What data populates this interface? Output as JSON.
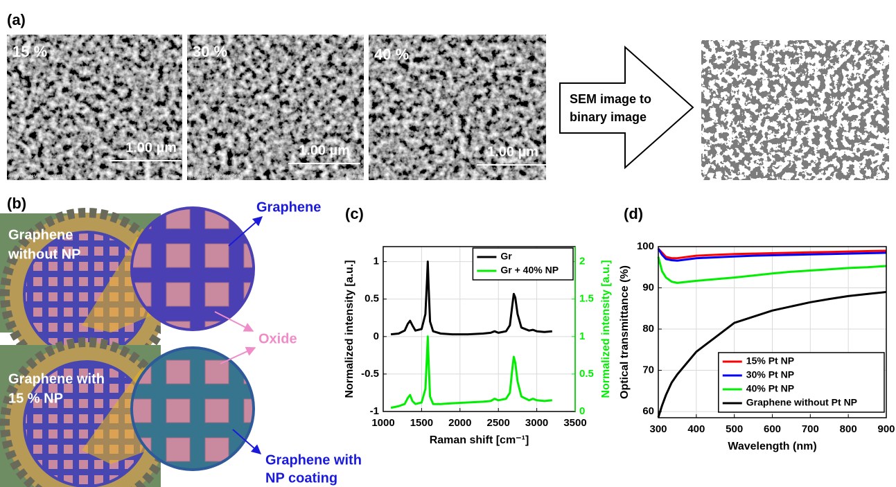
{
  "panel_labels": [
    "(a)",
    "(b)"
  ],
  "sem": {
    "labels": [
      "15 %",
      "30 %",
      "40 %"
    ],
    "scale_bar": "1.00 µm",
    "footer": "Regulus 2.0kV x50.0k SE(U)",
    "footer_scale": "1.00µm",
    "arrow_text": [
      "SEM image to",
      "binary image"
    ]
  },
  "optical": {
    "top_label": [
      "Graphene",
      "without NP"
    ],
    "bottom_label": [
      "Graphene with",
      "15 % NP"
    ],
    "graphene": "Graphene",
    "oxide": "Oxide",
    "coated": [
      "Graphene with",
      "NP coating"
    ]
  },
  "chart_data": [
    {
      "type": "line",
      "title": "(c)",
      "xlabel": "Raman shift [cm⁻¹]",
      "ylabel": "Normalized intensity [a.u.]",
      "y2label": "Normalized intensity [a.u.]",
      "xlim": [
        1000,
        3500
      ],
      "xticks": [
        1000,
        1500,
        2000,
        2500,
        3000,
        3500
      ],
      "ylim": [
        -1,
        1.2
      ],
      "yticks": [
        -1,
        -0.5,
        0,
        0.5,
        1
      ],
      "y2lim": [
        0,
        2.2
      ],
      "y2ticks": [
        0,
        0.5,
        1,
        1.5,
        2
      ],
      "grid": true,
      "legend": "upper right",
      "x": [
        1100,
        1200,
        1280,
        1320,
        1350,
        1380,
        1420,
        1500,
        1550,
        1570,
        1580,
        1590,
        1610,
        1650,
        1750,
        1900,
        2100,
        2300,
        2400,
        2450,
        2500,
        2600,
        2650,
        2680,
        2700,
        2720,
        2750,
        2800,
        2900,
        2950,
        3000,
        3100,
        3200
      ],
      "series": [
        {
          "name": "Gr",
          "color": "#000000",
          "values": [
            0.03,
            0.04,
            0.08,
            0.17,
            0.21,
            0.15,
            0.08,
            0.1,
            0.3,
            0.75,
            1.0,
            0.7,
            0.2,
            0.07,
            0.04,
            0.03,
            0.03,
            0.04,
            0.05,
            0.07,
            0.05,
            0.07,
            0.15,
            0.4,
            0.57,
            0.52,
            0.3,
            0.12,
            0.08,
            0.09,
            0.07,
            0.06,
            0.07
          ]
        },
        {
          "name": "Gr + 40% NP",
          "color": "#00ee00",
          "axis": "y2",
          "values": [
            0.05,
            0.07,
            0.1,
            0.18,
            0.22,
            0.14,
            0.1,
            0.12,
            0.3,
            0.75,
            1.0,
            0.7,
            0.2,
            0.1,
            0.1,
            0.11,
            0.12,
            0.13,
            0.14,
            0.17,
            0.15,
            0.17,
            0.25,
            0.55,
            0.73,
            0.65,
            0.4,
            0.2,
            0.15,
            0.17,
            0.15,
            0.14,
            0.15
          ]
        }
      ]
    },
    {
      "type": "line",
      "title": "(d)",
      "xlabel": "Wavelength (nm)",
      "ylabel": "Optical transmittance (%)",
      "xlim": [
        300,
        900
      ],
      "xticks": [
        300,
        400,
        500,
        600,
        700,
        800,
        900
      ],
      "ylim": [
        58.5,
        100
      ],
      "yticks": [
        60,
        70,
        80,
        90,
        100
      ],
      "grid": true,
      "legend": "lower right",
      "x": [
        300,
        310,
        320,
        335,
        350,
        400,
        450,
        500,
        550,
        600,
        650,
        700,
        750,
        800,
        850,
        900
      ],
      "series": [
        {
          "name": "15% Pt NP",
          "color": "#ff0000",
          "values": [
            99.5,
            98.5,
            97.5,
            97.2,
            97.2,
            97.8,
            98.0,
            98.2,
            98.3,
            98.4,
            98.5,
            98.6,
            98.7,
            98.8,
            98.9,
            99.0
          ]
        },
        {
          "name": "30% Pt NP",
          "color": "#0000ff",
          "values": [
            99.5,
            98.0,
            97.0,
            96.7,
            96.6,
            97.2,
            97.4,
            97.6,
            97.8,
            97.9,
            98.0,
            98.1,
            98.2,
            98.3,
            98.4,
            98.5
          ]
        },
        {
          "name": "40% Pt NP",
          "color": "#00ee00",
          "values": [
            97.5,
            94.0,
            92.5,
            91.5,
            91.2,
            91.7,
            92.1,
            92.5,
            93.0,
            93.5,
            93.9,
            94.2,
            94.5,
            94.8,
            95.0,
            95.3
          ]
        },
        {
          "name": "Graphene without Pt NP",
          "color": "#000000",
          "values": [
            58.6,
            61.5,
            64.0,
            67.0,
            69.0,
            74.5,
            78.0,
            81.5,
            83.0,
            84.5,
            85.5,
            86.5,
            87.3,
            88.0,
            88.5,
            89.0
          ]
        }
      ]
    }
  ]
}
